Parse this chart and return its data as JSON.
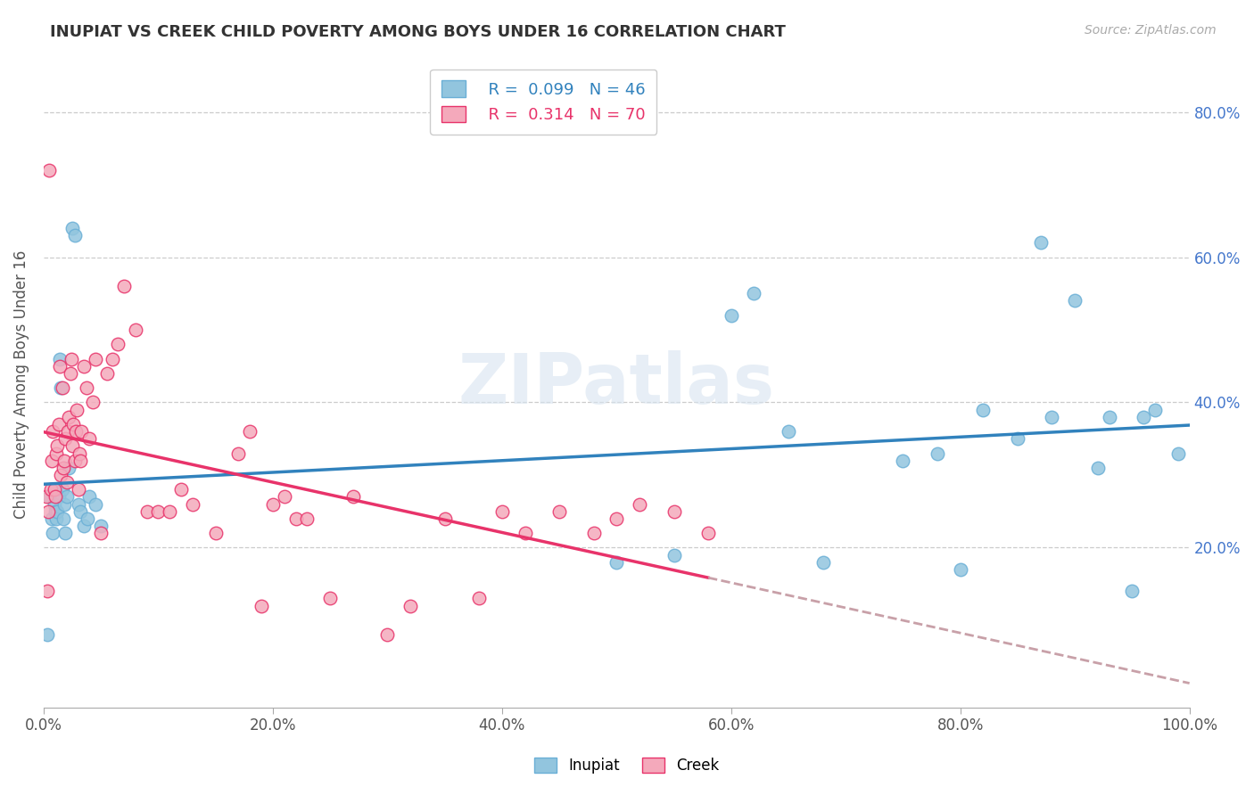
{
  "title": "INUPIAT VS CREEK CHILD POVERTY AMONG BOYS UNDER 16 CORRELATION CHART",
  "source": "Source: ZipAtlas.com",
  "ylabel": "Child Poverty Among Boys Under 16",
  "watermark": "ZIPatlas",
  "R_inupiat": 0.099,
  "N_inupiat": 46,
  "R_creek": 0.314,
  "N_creek": 70,
  "inupiat_color": "#92c5de",
  "creek_color": "#f4a9bb",
  "inupiat_trendline_color": "#3182bd",
  "creek_trendline_color": "#e8336a",
  "creek_dashed_color": "#c8a0a8",
  "background_color": "#ffffff",
  "grid_color": "#cccccc",
  "inupiat_x": [
    0.003,
    0.005,
    0.007,
    0.008,
    0.009,
    0.01,
    0.011,
    0.012,
    0.013,
    0.014,
    0.015,
    0.016,
    0.017,
    0.018,
    0.019,
    0.02,
    0.022,
    0.025,
    0.027,
    0.03,
    0.032,
    0.035,
    0.038,
    0.04,
    0.045,
    0.05,
    0.5,
    0.55,
    0.6,
    0.62,
    0.65,
    0.68,
    0.75,
    0.78,
    0.8,
    0.82,
    0.85,
    0.87,
    0.88,
    0.9,
    0.92,
    0.93,
    0.95,
    0.96,
    0.97,
    0.99
  ],
  "inupiat_y": [
    0.08,
    0.27,
    0.24,
    0.22,
    0.26,
    0.25,
    0.24,
    0.25,
    0.27,
    0.46,
    0.42,
    0.28,
    0.24,
    0.26,
    0.22,
    0.27,
    0.31,
    0.64,
    0.63,
    0.26,
    0.25,
    0.23,
    0.24,
    0.27,
    0.26,
    0.23,
    0.18,
    0.19,
    0.52,
    0.55,
    0.36,
    0.18,
    0.32,
    0.33,
    0.17,
    0.39,
    0.35,
    0.62,
    0.38,
    0.54,
    0.31,
    0.38,
    0.14,
    0.38,
    0.39,
    0.33
  ],
  "creek_x": [
    0.002,
    0.003,
    0.004,
    0.005,
    0.006,
    0.007,
    0.008,
    0.009,
    0.01,
    0.011,
    0.012,
    0.013,
    0.014,
    0.015,
    0.016,
    0.017,
    0.018,
    0.019,
    0.02,
    0.021,
    0.022,
    0.023,
    0.024,
    0.025,
    0.026,
    0.027,
    0.028,
    0.029,
    0.03,
    0.031,
    0.032,
    0.033,
    0.035,
    0.037,
    0.04,
    0.043,
    0.045,
    0.05,
    0.055,
    0.06,
    0.065,
    0.07,
    0.08,
    0.09,
    0.1,
    0.11,
    0.12,
    0.13,
    0.15,
    0.17,
    0.18,
    0.19,
    0.2,
    0.21,
    0.22,
    0.23,
    0.25,
    0.27,
    0.3,
    0.32,
    0.35,
    0.38,
    0.4,
    0.42,
    0.45,
    0.48,
    0.5,
    0.52,
    0.55,
    0.58
  ],
  "creek_y": [
    0.27,
    0.14,
    0.25,
    0.72,
    0.28,
    0.32,
    0.36,
    0.28,
    0.27,
    0.33,
    0.34,
    0.37,
    0.45,
    0.3,
    0.42,
    0.31,
    0.32,
    0.35,
    0.29,
    0.36,
    0.38,
    0.44,
    0.46,
    0.34,
    0.37,
    0.32,
    0.36,
    0.39,
    0.28,
    0.33,
    0.32,
    0.36,
    0.45,
    0.42,
    0.35,
    0.4,
    0.46,
    0.22,
    0.44,
    0.46,
    0.48,
    0.56,
    0.5,
    0.25,
    0.25,
    0.25,
    0.28,
    0.26,
    0.22,
    0.33,
    0.36,
    0.12,
    0.26,
    0.27,
    0.24,
    0.24,
    0.13,
    0.27,
    0.08,
    0.12,
    0.24,
    0.13,
    0.25,
    0.22,
    0.25,
    0.22,
    0.24,
    0.26,
    0.25,
    0.22
  ],
  "xlim": [
    0.0,
    1.0
  ],
  "ylim": [
    -0.02,
    0.87
  ],
  "xticks": [
    0.0,
    0.2,
    0.4,
    0.6,
    0.8,
    1.0
  ],
  "xtick_labels": [
    "0.0%",
    "20.0%",
    "40.0%",
    "60.0%",
    "80.0%",
    "100.0%"
  ],
  "yticks": [
    0.2,
    0.4,
    0.6,
    0.8
  ],
  "ytick_labels": [
    "20.0%",
    "40.0%",
    "60.0%",
    "80.0%"
  ]
}
